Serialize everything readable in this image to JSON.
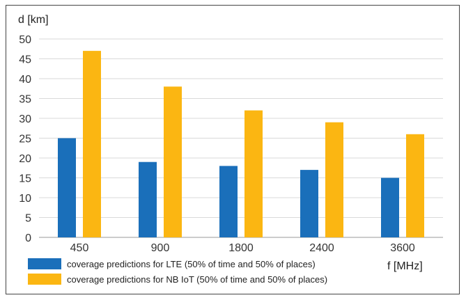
{
  "chart_data": {
    "type": "bar",
    "categories": [
      "450",
      "900",
      "1800",
      "2400",
      "3600"
    ],
    "series": [
      {
        "name": "coverage predictions for LTE (50% of time and 50% of places)",
        "values": [
          25,
          19,
          18,
          17,
          15
        ],
        "color": "#1a6fba"
      },
      {
        "name": "coverage predictions for NB IoT (50% of time and 50% of places)",
        "values": [
          47,
          38,
          32,
          29,
          26
        ],
        "color": "#fbb612"
      }
    ],
    "title": "",
    "xlabel": "f [MHz]",
    "ylabel": "d [km]",
    "ylim": [
      0,
      50
    ],
    "yticks": [
      0,
      5,
      10,
      15,
      20,
      25,
      30,
      35,
      40,
      45,
      50
    ],
    "grid": true,
    "legend": "bottom"
  }
}
